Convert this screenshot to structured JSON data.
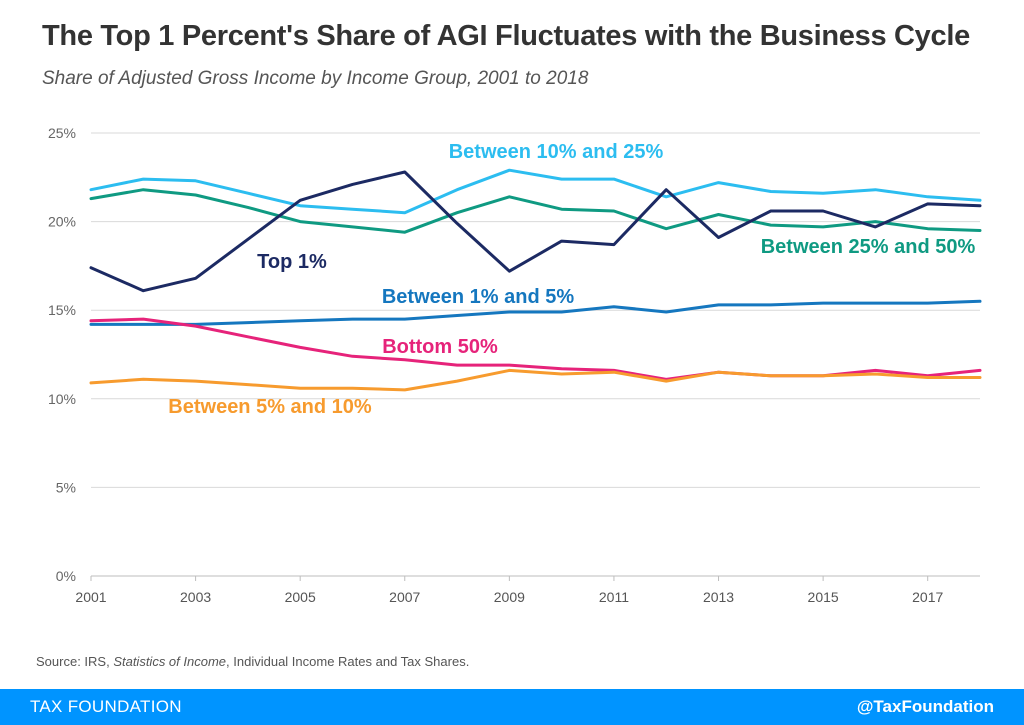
{
  "header": {
    "title": "The Top 1 Percent's Share of AGI Fluctuates with the Business Cycle",
    "subtitle": "Share of Adjusted Gross Income by Income Group, 2001 to 2018"
  },
  "source": {
    "prefix": "Source: IRS, ",
    "italic": "Statistics of Income",
    "suffix": ", Individual Income Rates and Tax Shares."
  },
  "footer": {
    "brand": "TAX FOUNDATION",
    "handle": "@TaxFoundation"
  },
  "chart_data": {
    "type": "line",
    "x": [
      2001,
      2002,
      2003,
      2004,
      2005,
      2006,
      2007,
      2008,
      2009,
      2010,
      2011,
      2012,
      2013,
      2014,
      2015,
      2016,
      2017,
      2018
    ],
    "x_ticks": [
      "2001",
      "2003",
      "2005",
      "2007",
      "2009",
      "2011",
      "2013",
      "2015",
      "2017"
    ],
    "y_ticks": [
      "0%",
      "5%",
      "10%",
      "15%",
      "20%",
      "25%"
    ],
    "ylim": [
      0,
      25
    ],
    "grid": true,
    "legend": "inline labels",
    "series": [
      {
        "name": "Between 10% and 25%",
        "color": "#2cbdf0",
        "values": [
          21.8,
          22.4,
          22.3,
          21.6,
          20.9,
          20.7,
          20.5,
          21.8,
          22.9,
          22.4,
          22.4,
          21.4,
          22.2,
          21.7,
          21.6,
          21.8,
          21.4,
          21.2
        ]
      },
      {
        "name": "Between 25% and 50%",
        "color": "#0f9a82",
        "values": [
          21.3,
          21.8,
          21.5,
          20.8,
          20.0,
          19.7,
          19.4,
          20.5,
          21.4,
          20.7,
          20.6,
          19.6,
          20.4,
          19.8,
          19.7,
          20.0,
          19.6,
          19.5
        ]
      },
      {
        "name": "Top 1%",
        "color": "#1c2a63",
        "values": [
          17.4,
          16.1,
          16.8,
          19.0,
          21.2,
          22.1,
          22.8,
          19.9,
          17.2,
          18.9,
          18.7,
          21.8,
          19.1,
          20.6,
          20.6,
          19.7,
          21.0,
          20.9
        ]
      },
      {
        "name": "Between 1% and 5%",
        "color": "#1577bf",
        "values": [
          14.2,
          14.2,
          14.2,
          14.3,
          14.4,
          14.5,
          14.5,
          14.7,
          14.9,
          14.9,
          15.2,
          14.9,
          15.3,
          15.3,
          15.4,
          15.4,
          15.4,
          15.5
        ]
      },
      {
        "name": "Bottom 50%",
        "color": "#e6237a",
        "values": [
          14.4,
          14.5,
          14.1,
          13.5,
          12.9,
          12.4,
          12.2,
          11.9,
          11.9,
          11.7,
          11.6,
          11.1,
          11.5,
          11.3,
          11.3,
          11.6,
          11.3,
          11.6
        ]
      },
      {
        "name": "Between 5% and 10%",
        "color": "#f79b2e",
        "values": [
          10.9,
          11.1,
          11.0,
          10.8,
          10.6,
          10.6,
          10.5,
          11.0,
          11.6,
          11.4,
          11.5,
          11.0,
          11.5,
          11.3,
          11.3,
          11.4,
          11.2,
          11.2
        ]
      }
    ]
  }
}
